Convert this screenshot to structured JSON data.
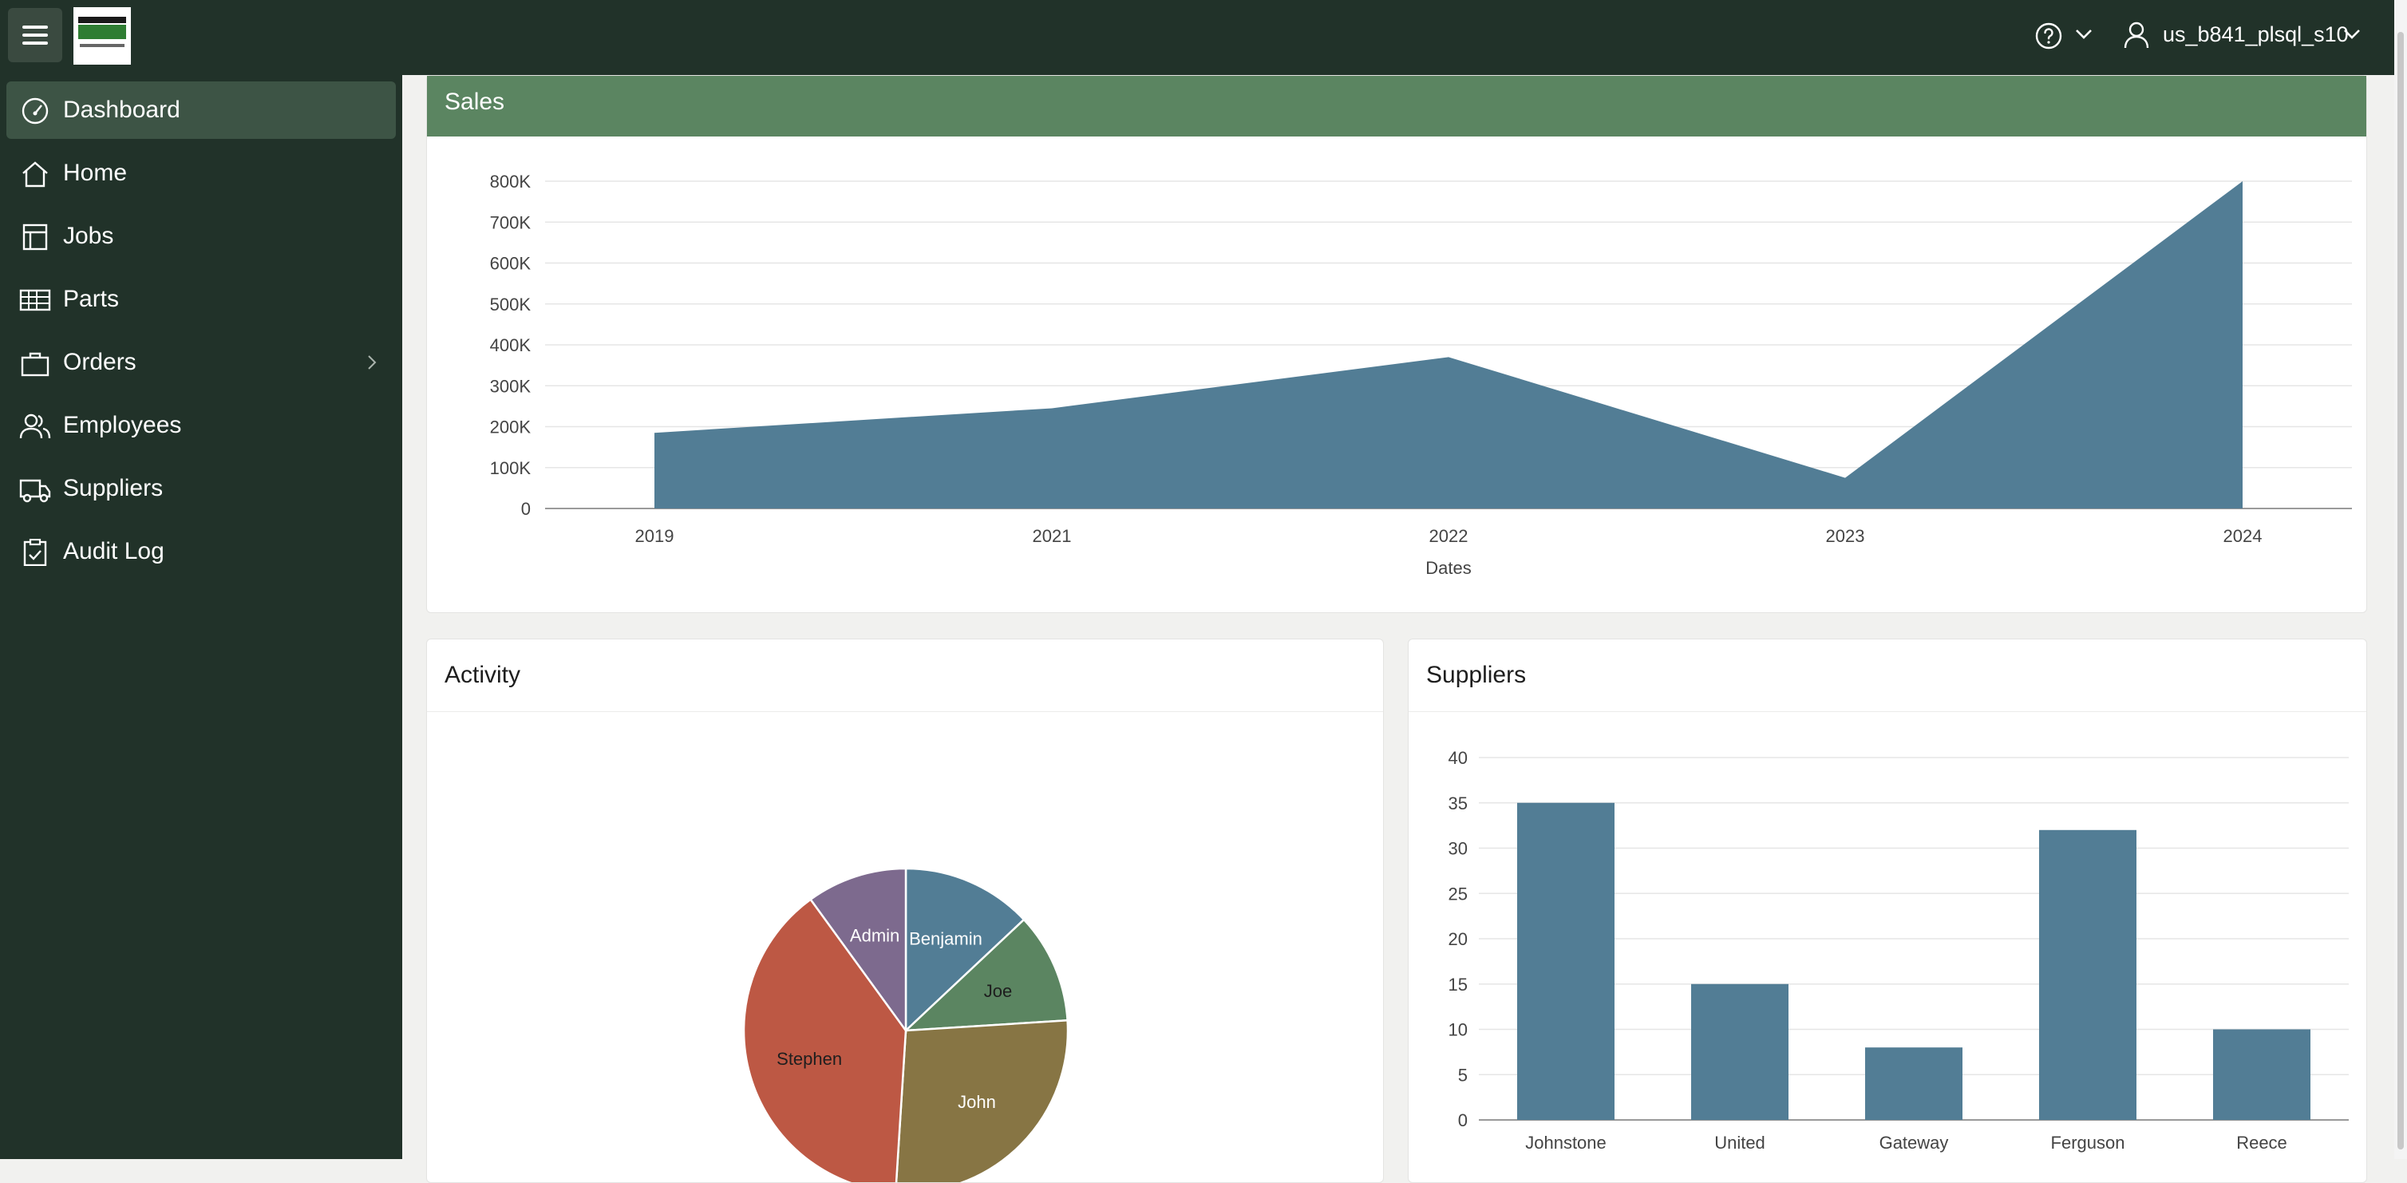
{
  "header": {
    "username": "us_b841_plsql_s10"
  },
  "sidebar": {
    "items": [
      {
        "label": "Dashboard",
        "icon": "dashboard-icon",
        "active": true
      },
      {
        "label": "Home",
        "icon": "home-icon"
      },
      {
        "label": "Jobs",
        "icon": "jobs-icon"
      },
      {
        "label": "Parts",
        "icon": "table-icon"
      },
      {
        "label": "Orders",
        "icon": "bag-icon",
        "has_submenu": true
      },
      {
        "label": "Employees",
        "icon": "people-icon"
      },
      {
        "label": "Suppliers",
        "icon": "truck-icon"
      },
      {
        "label": "Audit Log",
        "icon": "clipboard-icon"
      }
    ]
  },
  "sales": {
    "title": "Sales",
    "chart_data": {
      "type": "area",
      "x": [
        "2019",
        "2021",
        "2022",
        "2023",
        "2024"
      ],
      "values": [
        185000,
        245000,
        370000,
        75000,
        800000
      ],
      "xlabel": "Dates",
      "ylabel": "",
      "ylim": [
        0,
        800000
      ],
      "yticks": [
        "0",
        "100K",
        "200K",
        "300K",
        "400K",
        "500K",
        "600K",
        "700K",
        "800K"
      ],
      "color": "#527d95",
      "grid": true
    }
  },
  "activity": {
    "title": "Activity",
    "chart_data": {
      "type": "pie",
      "slices": [
        {
          "label": "Benjamin",
          "value": 13,
          "color": "#527d95",
          "text_color": "#ffffff"
        },
        {
          "label": "Joe",
          "value": 11,
          "color": "#5b8561",
          "text_color": "#1e1e1e"
        },
        {
          "label": "John",
          "value": 27,
          "color": "#877544",
          "text_color": "#ffffff"
        },
        {
          "label": "Stephen",
          "value": 39,
          "color": "#bd5844",
          "text_color": "#1e1e1e"
        },
        {
          "label": "Admin",
          "value": 10,
          "color": "#7d6a8e",
          "text_color": "#ffffff"
        }
      ]
    }
  },
  "suppliers": {
    "title": "Suppliers",
    "chart_data": {
      "type": "bar",
      "categories": [
        "Johnstone",
        "United",
        "Gateway",
        "Ferguson",
        "Reece"
      ],
      "values": [
        35,
        15,
        8,
        32,
        10
      ],
      "ylim": [
        0,
        40
      ],
      "yticks": [
        "0",
        "5",
        "10",
        "15",
        "20",
        "25",
        "30",
        "35",
        "40"
      ],
      "color": "#527d95",
      "grid": true
    }
  }
}
